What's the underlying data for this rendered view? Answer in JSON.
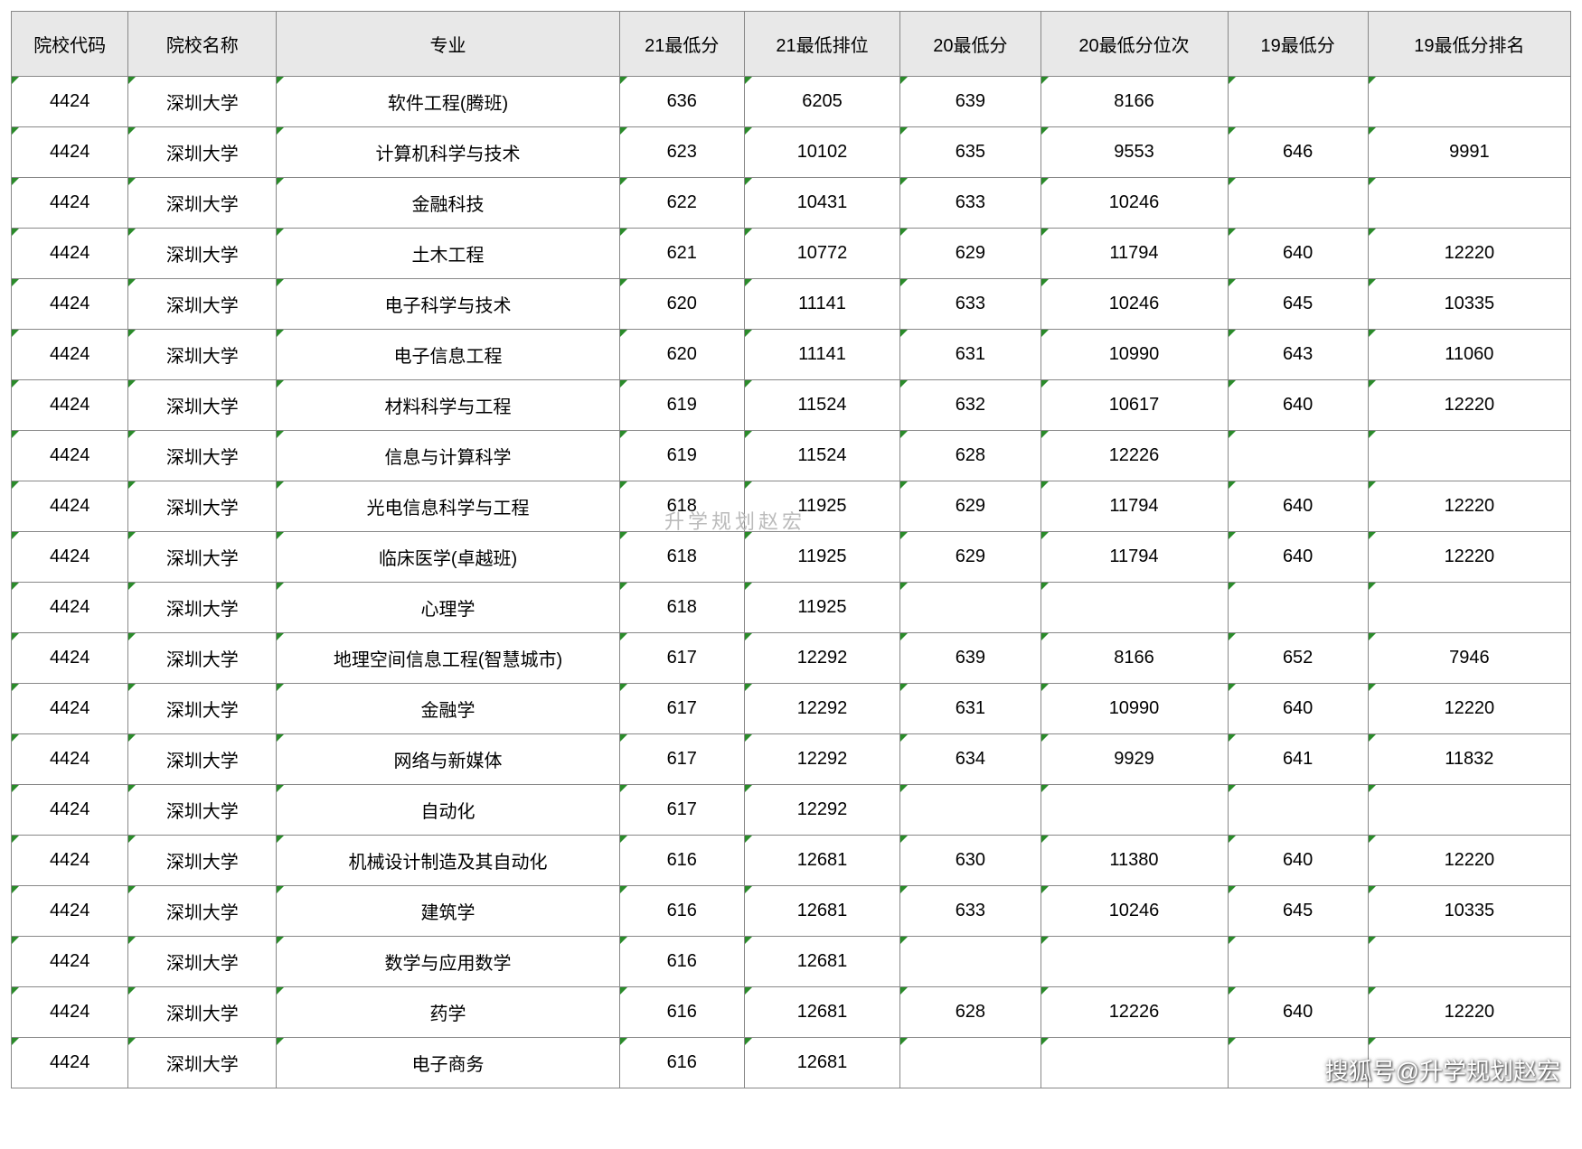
{
  "table": {
    "columns": [
      {
        "key": "code",
        "label": "院校代码",
        "width": "7.5%"
      },
      {
        "key": "school",
        "label": "院校名称",
        "width": "9.5%"
      },
      {
        "key": "major",
        "label": "专业",
        "width": "22%"
      },
      {
        "key": "s21",
        "label": "21最低分",
        "width": "8%"
      },
      {
        "key": "r21",
        "label": "21最低排位",
        "width": "10%"
      },
      {
        "key": "s20",
        "label": "20最低分",
        "width": "9%"
      },
      {
        "key": "r20",
        "label": "20最低分位次",
        "width": "12%"
      },
      {
        "key": "s19",
        "label": "19最低分",
        "width": "9%"
      },
      {
        "key": "r19",
        "label": "19最低分排名",
        "width": "13%"
      }
    ],
    "rows": [
      [
        "4424",
        "深圳大学",
        "软件工程(腾班)",
        "636",
        "6205",
        "639",
        "8166",
        "",
        ""
      ],
      [
        "4424",
        "深圳大学",
        "计算机科学与技术",
        "623",
        "10102",
        "635",
        "9553",
        "646",
        "9991"
      ],
      [
        "4424",
        "深圳大学",
        "金融科技",
        "622",
        "10431",
        "633",
        "10246",
        "",
        ""
      ],
      [
        "4424",
        "深圳大学",
        "土木工程",
        "621",
        "10772",
        "629",
        "11794",
        "640",
        "12220"
      ],
      [
        "4424",
        "深圳大学",
        "电子科学与技术",
        "620",
        "11141",
        "633",
        "10246",
        "645",
        "10335"
      ],
      [
        "4424",
        "深圳大学",
        "电子信息工程",
        "620",
        "11141",
        "631",
        "10990",
        "643",
        "11060"
      ],
      [
        "4424",
        "深圳大学",
        "材料科学与工程",
        "619",
        "11524",
        "632",
        "10617",
        "640",
        "12220"
      ],
      [
        "4424",
        "深圳大学",
        "信息与计算科学",
        "619",
        "11524",
        "628",
        "12226",
        "",
        ""
      ],
      [
        "4424",
        "深圳大学",
        "光电信息科学与工程",
        "618",
        "11925",
        "629",
        "11794",
        "640",
        "12220"
      ],
      [
        "4424",
        "深圳大学",
        "临床医学(卓越班)",
        "618",
        "11925",
        "629",
        "11794",
        "640",
        "12220"
      ],
      [
        "4424",
        "深圳大学",
        "心理学",
        "618",
        "11925",
        "",
        "",
        "",
        ""
      ],
      [
        "4424",
        "深圳大学",
        "地理空间信息工程(智慧城市)",
        "617",
        "12292",
        "639",
        "8166",
        "652",
        "7946"
      ],
      [
        "4424",
        "深圳大学",
        "金融学",
        "617",
        "12292",
        "631",
        "10990",
        "640",
        "12220"
      ],
      [
        "4424",
        "深圳大学",
        "网络与新媒体",
        "617",
        "12292",
        "634",
        "9929",
        "641",
        "11832"
      ],
      [
        "4424",
        "深圳大学",
        "自动化",
        "617",
        "12292",
        "",
        "",
        "",
        ""
      ],
      [
        "4424",
        "深圳大学",
        "机械设计制造及其自动化",
        "616",
        "12681",
        "630",
        "11380",
        "640",
        "12220"
      ],
      [
        "4424",
        "深圳大学",
        "建筑学",
        "616",
        "12681",
        "633",
        "10246",
        "645",
        "10335"
      ],
      [
        "4424",
        "深圳大学",
        "数学与应用数学",
        "616",
        "12681",
        "",
        "",
        "",
        ""
      ],
      [
        "4424",
        "深圳大学",
        "药学",
        "616",
        "12681",
        "628",
        "12226",
        "640",
        "12220"
      ],
      [
        "4424",
        "深圳大学",
        "电子商务",
        "616",
        "12681",
        "",
        "",
        "",
        ""
      ]
    ]
  },
  "watermark_center": "升学规划赵宏",
  "watermark_bottom": "搜狐号@升学规划赵宏"
}
